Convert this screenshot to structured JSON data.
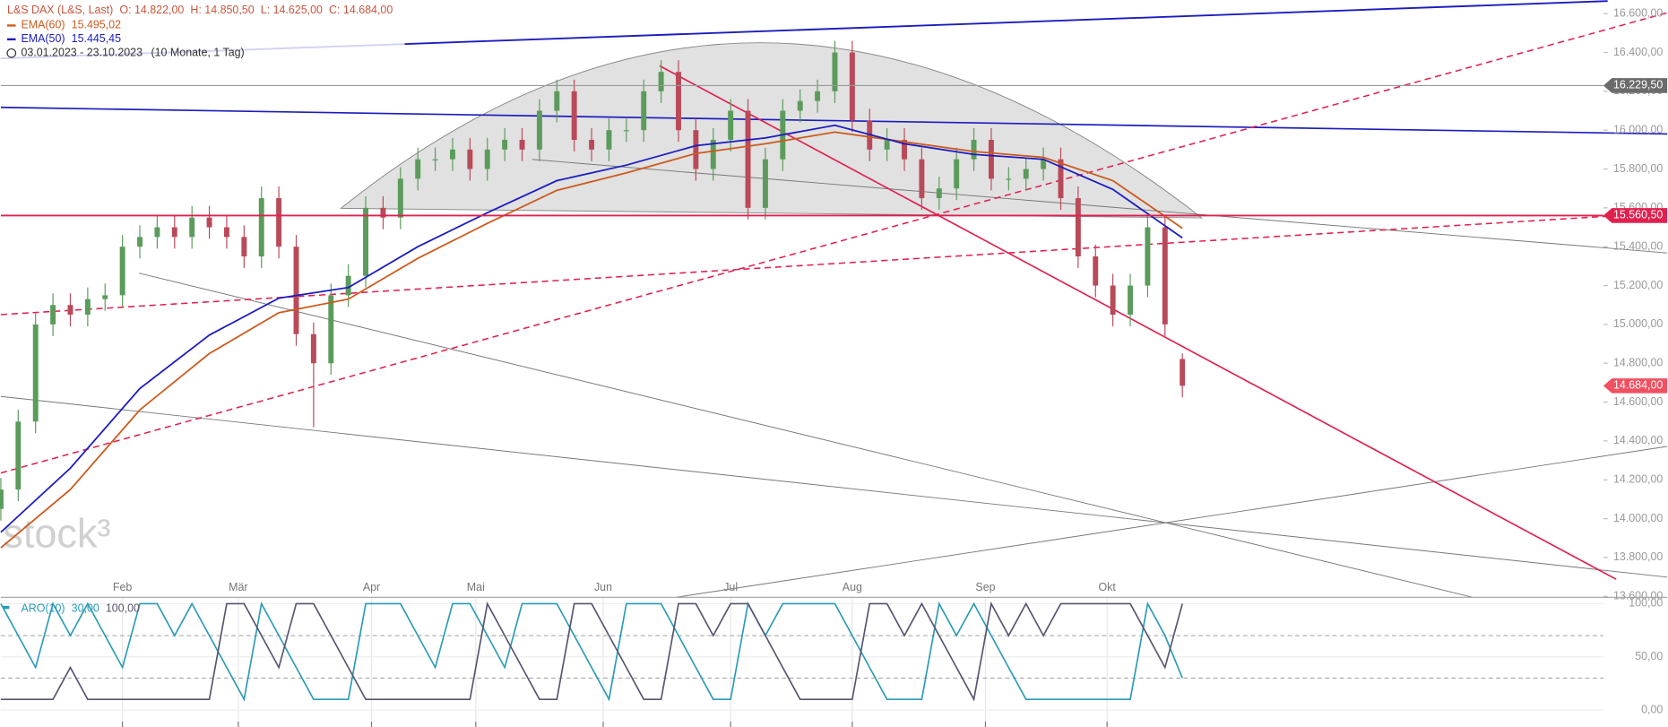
{
  "chart_data": [
    {
      "type": "candlestick",
      "instrument": "L&S DAX (L&S, Last)",
      "open_label": "O: 14.822,00",
      "high_label": "H: 14.850,50",
      "low_label": "L: 14.625,00",
      "close_label": "C: 14.684,00",
      "range": "03.01.2023 - 23.10.2023",
      "period": "(10 Monate, 1 Tag)",
      "watermark": "stock³",
      "up_color": "#5b9b5b",
      "down_color": "#b94a5a",
      "x": [
        0,
        3,
        6,
        9,
        12,
        15,
        18,
        21,
        24,
        27,
        30,
        33,
        36,
        39,
        42,
        45,
        48,
        51,
        54,
        57,
        60,
        63,
        66,
        69,
        72,
        75,
        78,
        81,
        84,
        87,
        90,
        93,
        96,
        99,
        102,
        105,
        108,
        111,
        114,
        117,
        120,
        123,
        126,
        129,
        132,
        135,
        138,
        141,
        144,
        147,
        150,
        153,
        156,
        159,
        162,
        165,
        168,
        171,
        174,
        177,
        180,
        183,
        186,
        189,
        192,
        195,
        198,
        201,
        204
      ],
      "open": [
        14050,
        14150,
        14500,
        15000,
        15100,
        15050,
        15130,
        15150,
        15400,
        15450,
        15500,
        15450,
        15550,
        15500,
        15450,
        15350,
        15650,
        15400,
        14950,
        14800,
        15150,
        15250,
        15600,
        15550,
        15750,
        15850,
        15850,
        15900,
        15800,
        15900,
        15950,
        15900,
        16100,
        16200,
        15950,
        15900,
        16000,
        16000,
        16200,
        16300,
        16000,
        15800,
        15950,
        16100,
        15600,
        15850,
        16100,
        16150,
        16200,
        16400,
        16050,
        15900,
        15950,
        15850,
        15650,
        15700,
        15850,
        15950,
        15750,
        15750,
        15800,
        15850,
        15650,
        15350,
        15200,
        15050,
        15200,
        15500,
        14822
      ],
      "high": [
        14210,
        14560,
        15060,
        15160,
        15160,
        15190,
        15210,
        15460,
        15510,
        15560,
        15560,
        15610,
        15610,
        15560,
        15510,
        15710,
        15710,
        15460,
        15010,
        15210,
        15310,
        15660,
        15660,
        15810,
        15910,
        15910,
        15960,
        15960,
        15960,
        16010,
        16010,
        16160,
        16260,
        16260,
        16010,
        16060,
        16060,
        16260,
        16360,
        16360,
        16060,
        16010,
        16160,
        16160,
        15910,
        16160,
        16210,
        16260,
        16460,
        16460,
        16110,
        16010,
        16010,
        15910,
        15760,
        15910,
        16010,
        16010,
        15810,
        15860,
        15910,
        15910,
        15710,
        15410,
        15260,
        15260,
        15560,
        15560,
        14850.5
      ],
      "low": [
        13990,
        14090,
        14440,
        14940,
        14990,
        14990,
        15070,
        15090,
        15340,
        15390,
        15390,
        15390,
        15440,
        15390,
        15290,
        15290,
        15340,
        14890,
        14470,
        14740,
        15090,
        15190,
        15490,
        15490,
        15690,
        15790,
        15790,
        15740,
        15740,
        15840,
        15840,
        15840,
        16040,
        15890,
        15840,
        15840,
        15940,
        15940,
        16140,
        15940,
        15740,
        15740,
        15890,
        15540,
        15540,
        15790,
        16040,
        16090,
        16140,
        15990,
        15840,
        15840,
        15790,
        15590,
        15590,
        15640,
        15790,
        15690,
        15690,
        15690,
        15740,
        15590,
        15290,
        15140,
        14990,
        14990,
        15140,
        14940,
        14625
      ],
      "close": [
        14150,
        14500,
        15000,
        15100,
        15050,
        15130,
        15150,
        15400,
        15450,
        15500,
        15450,
        15550,
        15500,
        15450,
        15350,
        15650,
        15400,
        14950,
        14800,
        15150,
        15250,
        15600,
        15550,
        15750,
        15850,
        15850,
        15900,
        15800,
        15900,
        15950,
        15900,
        16100,
        16200,
        15950,
        15900,
        16000,
        16000,
        16200,
        16300,
        16000,
        15800,
        15950,
        16100,
        15600,
        15850,
        16100,
        16150,
        16200,
        16400,
        16050,
        15900,
        15950,
        15850,
        15650,
        15700,
        15850,
        15950,
        15750,
        15750,
        15800,
        15850,
        15650,
        15350,
        15200,
        15050,
        15200,
        15500,
        15000,
        14684
      ],
      "series": [
        {
          "name": "EMA(60)",
          "legend_value": "15.495,02",
          "color": "#cc5a1e",
          "x": [
            0,
            12,
            24,
            36,
            48,
            60,
            72,
            84,
            96,
            108,
            120,
            132,
            144,
            156,
            168,
            180,
            192,
            204
          ],
          "values": [
            13850,
            14150,
            14560,
            14850,
            15060,
            15130,
            15340,
            15520,
            15690,
            15780,
            15880,
            15930,
            15990,
            15940,
            15890,
            15860,
            15740,
            15495.02
          ]
        },
        {
          "name": "EMA(50)",
          "legend_value": "15.445,45",
          "color": "#1c1cc0",
          "x": [
            0,
            12,
            24,
            36,
            48,
            60,
            72,
            84,
            96,
            108,
            120,
            132,
            144,
            156,
            168,
            180,
            192,
            204
          ],
          "values": [
            13930,
            14260,
            14670,
            14945,
            15135,
            15190,
            15400,
            15575,
            15740,
            15820,
            15920,
            15960,
            16025,
            15930,
            15875,
            15850,
            15695,
            15445.45
          ]
        }
      ],
      "levels": [
        {
          "value": 16229.5,
          "label": "16.229,50",
          "color": "#999999",
          "box": "#6b6b6b"
        },
        {
          "value": 15560.5,
          "label": "15.560,50",
          "color": "#e0204f",
          "box": "#e0204f"
        }
      ],
      "last_price": {
        "value": 14684,
        "label": "14.684,00",
        "box": "#f05060"
      },
      "xlim": [
        0,
        287.7
      ],
      "ylim": [
        13595,
        16670
      ],
      "xticks": [
        {
          "value": 21,
          "label": "Feb"
        },
        {
          "value": 41,
          "label": "Mär"
        },
        {
          "value": 64,
          "label": "Apr"
        },
        {
          "value": 82,
          "label": "Mai"
        },
        {
          "value": 104,
          "label": "Jun"
        },
        {
          "value": 126,
          "label": "Jul"
        },
        {
          "value": 147,
          "label": "Aug"
        },
        {
          "value": 170,
          "label": "Sep"
        },
        {
          "value": 191,
          "label": "Okt"
        }
      ],
      "yticks": [
        {
          "value": 13600,
          "label": "13.600,00"
        },
        {
          "value": 13800,
          "label": "13.800,00"
        },
        {
          "value": 14000,
          "label": "14.000,00"
        },
        {
          "value": 14200,
          "label": "14.200,00"
        },
        {
          "value": 14400,
          "label": "14.400,00"
        },
        {
          "value": 14600,
          "label": "14.600,00"
        },
        {
          "value": 14800,
          "label": "14.800,00"
        },
        {
          "value": 15000,
          "label": "15.000,00"
        },
        {
          "value": 15200,
          "label": "15.200,00"
        },
        {
          "value": 15400,
          "label": "15.400,00"
        },
        {
          "value": 15600,
          "label": "15.600,00"
        },
        {
          "value": 15800,
          "label": "15.800,00"
        },
        {
          "value": 16000,
          "label": "16.000,00"
        },
        {
          "value": 16200,
          "label": "16.200,00"
        },
        {
          "value": 16400,
          "label": "16.400,00"
        },
        {
          "value": 16600,
          "label": "16.600,00"
        }
      ]
    },
    {
      "type": "line",
      "name": "ARO(10)",
      "x": [
        0,
        3,
        6,
        9,
        12,
        15,
        18,
        21,
        24,
        27,
        30,
        33,
        36,
        39,
        42,
        45,
        48,
        51,
        54,
        57,
        60,
        63,
        66,
        69,
        72,
        75,
        78,
        81,
        84,
        87,
        90,
        93,
        96,
        99,
        102,
        105,
        108,
        111,
        114,
        117,
        120,
        123,
        126,
        129,
        132,
        135,
        138,
        141,
        144,
        147,
        150,
        153,
        156,
        159,
        162,
        165,
        168,
        171,
        174,
        177,
        180,
        183,
        186,
        189,
        192,
        195,
        198,
        201,
        204
      ],
      "series": [
        {
          "legend_value": "30,00",
          "color": "#2a9bb5",
          "values": [
            100,
            70,
            40,
            100,
            70,
            100,
            70,
            40,
            100,
            100,
            70,
            100,
            70,
            40,
            10,
            100,
            70,
            40,
            10,
            10,
            10,
            100,
            100,
            100,
            70,
            40,
            100,
            100,
            70,
            40,
            100,
            100,
            100,
            70,
            40,
            10,
            100,
            100,
            100,
            70,
            40,
            10,
            10,
            100,
            70,
            100,
            100,
            100,
            100,
            70,
            40,
            10,
            10,
            10,
            100,
            70,
            100,
            70,
            40,
            10,
            10,
            10,
            10,
            10,
            10,
            10,
            100,
            70,
            30
          ]
        },
        {
          "legend_value": "100,00",
          "color": "#555570",
          "values": [
            10,
            10,
            10,
            10,
            40,
            10,
            10,
            10,
            10,
            10,
            10,
            10,
            10,
            100,
            100,
            70,
            40,
            100,
            100,
            70,
            40,
            10,
            10,
            10,
            10,
            10,
            10,
            10,
            100,
            70,
            40,
            10,
            10,
            100,
            100,
            70,
            40,
            10,
            10,
            100,
            100,
            70,
            100,
            100,
            70,
            40,
            10,
            10,
            10,
            10,
            100,
            100,
            70,
            100,
            70,
            40,
            10,
            100,
            70,
            100,
            70,
            100,
            100,
            100,
            100,
            100,
            70,
            40,
            100
          ]
        }
      ],
      "levels": [
        70,
        30
      ],
      "ylim": [
        -16,
        106
      ],
      "yticks": [
        {
          "value": 0,
          "label": "0,00"
        },
        {
          "value": 50,
          "label": "50,00"
        },
        {
          "value": 100,
          "label": "100,00"
        }
      ]
    }
  ]
}
